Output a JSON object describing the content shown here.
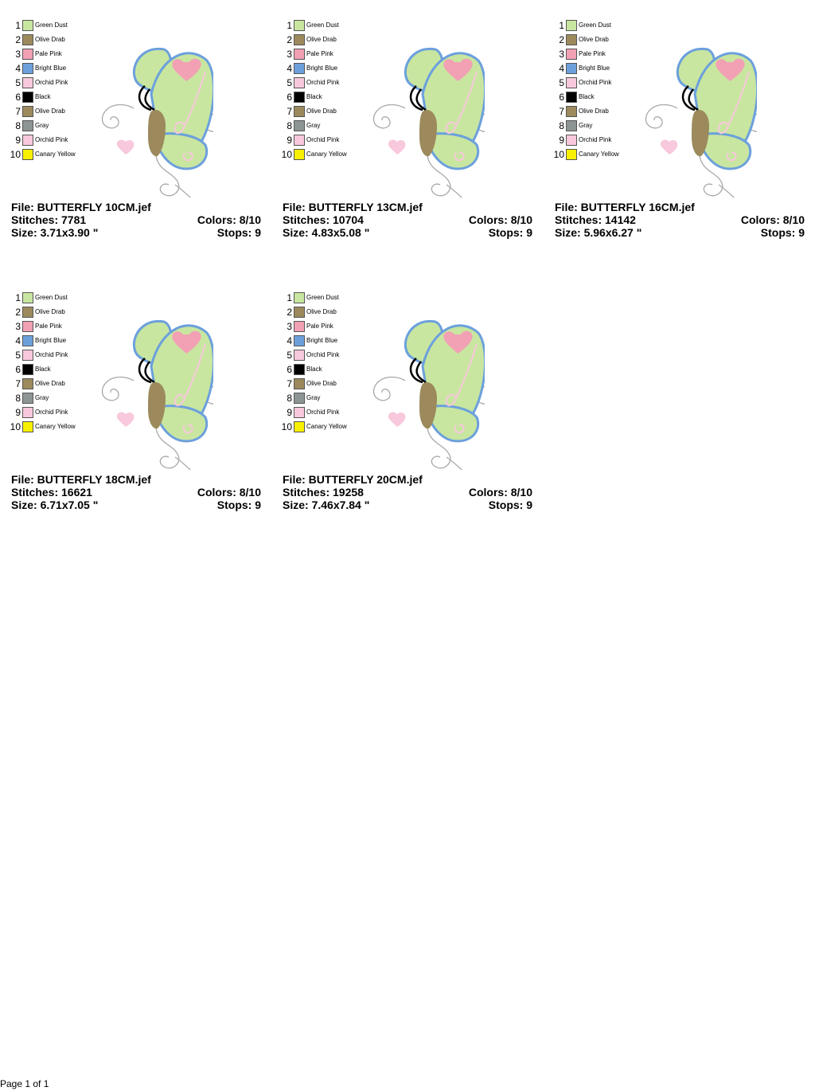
{
  "legend": [
    {
      "num": "1",
      "name": "Green Dust",
      "color": "#c8e6a0"
    },
    {
      "num": "2",
      "name": "Olive Drab",
      "color": "#9c8a5c"
    },
    {
      "num": "3",
      "name": "Pale Pink",
      "color": "#f2a0b4"
    },
    {
      "num": "4",
      "name": "Bright Blue",
      "color": "#6ca0dc"
    },
    {
      "num": "5",
      "name": "Orchid Pink",
      "color": "#f8c8dc"
    },
    {
      "num": "6",
      "name": "Black",
      "color": "#000000"
    },
    {
      "num": "7",
      "name": "Olive Drab",
      "color": "#9c8a5c"
    },
    {
      "num": "8",
      "name": "Gray",
      "color": "#8c9494"
    },
    {
      "num": "9",
      "name": "Orchid Pink",
      "color": "#f8c8dc"
    },
    {
      "num": "10",
      "name": "Canary Yellow",
      "color": "#f8f000"
    }
  ],
  "designs": [
    {
      "file": "File: BUTTERFLY 10CM.jef",
      "stitches": "Stitches: 7781",
      "colors": "Colors: 8/10",
      "size": "Size: 3.71x3.90 \"",
      "stops": "Stops: 9"
    },
    {
      "file": "File: BUTTERFLY 13CM.jef",
      "stitches": "Stitches: 10704",
      "colors": "Colors: 8/10",
      "size": "Size: 4.83x5.08 \"",
      "stops": "Stops: 9"
    },
    {
      "file": "File: BUTTERFLY 16CM.jef",
      "stitches": "Stitches: 14142",
      "colors": "Colors: 8/10",
      "size": "Size: 5.96x6.27 \"",
      "stops": "Stops: 9"
    },
    {
      "file": "File: BUTTERFLY 18CM.jef",
      "stitches": "Stitches: 16621",
      "colors": "Colors: 8/10",
      "size": "Size: 6.71x7.05 \"",
      "stops": "Stops: 9"
    },
    {
      "file": "File: BUTTERFLY 20CM.jef",
      "stitches": "Stitches: 19258",
      "colors": "Colors: 8/10",
      "size": "Size: 7.46x7.84 \"",
      "stops": "Stops: 9"
    }
  ],
  "footer": {
    "page": "Page 1 of 1"
  }
}
